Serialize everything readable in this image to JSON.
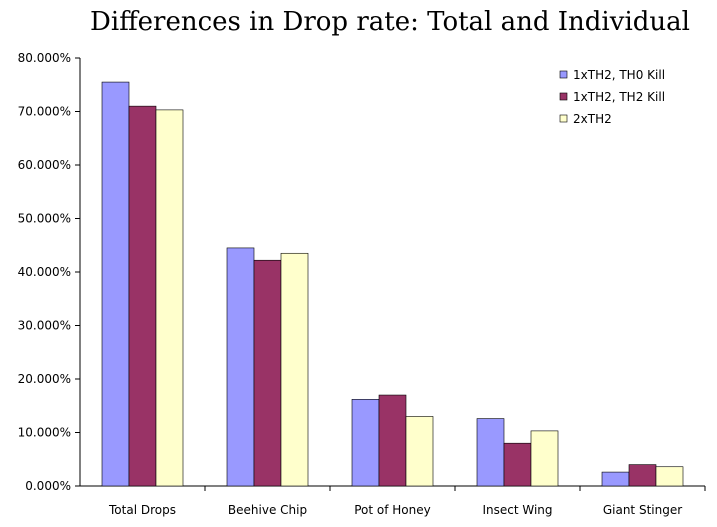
{
  "chart_data": {
    "type": "bar",
    "title": "Differences in Drop rate: Total and Individual",
    "xlabel": "",
    "ylabel": "",
    "categories": [
      "Total Drops",
      "Beehive Chip",
      "Pot of Honey",
      "Insect Wing",
      "Giant Stinger"
    ],
    "series": [
      {
        "name": "1xTH2, TH0 Kill",
        "color": "#9999ff",
        "values": [
          75.5,
          44.5,
          16.2,
          12.6,
          2.6
        ]
      },
      {
        "name": "1xTH2, TH2 Kill",
        "color": "#993366",
        "values": [
          71.0,
          42.2,
          17.0,
          8.0,
          4.0
        ]
      },
      {
        "name": "2xTH2",
        "color": "#ffffcc",
        "values": [
          70.3,
          43.5,
          13.0,
          10.3,
          3.6
        ]
      }
    ],
    "ylim": [
      0,
      80
    ],
    "ytick_labels": [
      "0.000%",
      "10.000%",
      "20.000%",
      "30.000%",
      "40.000%",
      "50.000%",
      "60.000%",
      "70.000%",
      "80.000%"
    ],
    "grid": false,
    "legend": "top-right"
  }
}
